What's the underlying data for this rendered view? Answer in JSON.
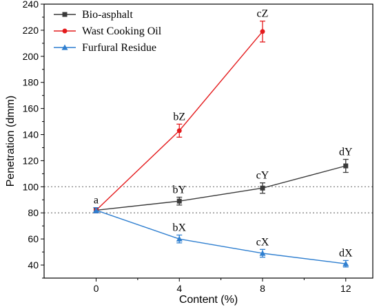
{
  "chart_data": {
    "type": "line",
    "xlabel": "Content (%)",
    "ylabel": "Penetration (dmm)",
    "xlim": [
      -2.5,
      13.3
    ],
    "ylim": [
      30,
      240
    ],
    "x_ticks": [
      0,
      4,
      8,
      12
    ],
    "y_ticks": [
      40,
      60,
      80,
      100,
      120,
      140,
      160,
      180,
      200,
      220,
      240
    ],
    "reference_lines": [
      80,
      100
    ],
    "legend_position": "top-left",
    "series": [
      {
        "name": "Bio-asphalt",
        "color": "#3a3a3a",
        "marker": "square",
        "x": [
          0,
          4,
          8,
          12
        ],
        "y": [
          82,
          89,
          99,
          116
        ],
        "err": [
          2,
          3,
          4,
          5
        ],
        "labels": [
          "a",
          "bY",
          "cY",
          "dY"
        ]
      },
      {
        "name": "Wast Cooking Oil",
        "color": "#e41a1c",
        "marker": "circle",
        "x": [
          0,
          4,
          8
        ],
        "y": [
          82,
          143,
          219
        ],
        "err": [
          2,
          5,
          8
        ],
        "labels": [
          "",
          "bZ",
          "cZ"
        ]
      },
      {
        "name": "Furfural Residue",
        "color": "#2f7fd0",
        "marker": "triangle",
        "x": [
          0,
          4,
          8,
          12
        ],
        "y": [
          82,
          60,
          49,
          41
        ],
        "err": [
          2,
          3,
          3,
          2.5
        ],
        "labels": [
          "",
          "bX",
          "cX",
          "dX"
        ]
      }
    ]
  }
}
